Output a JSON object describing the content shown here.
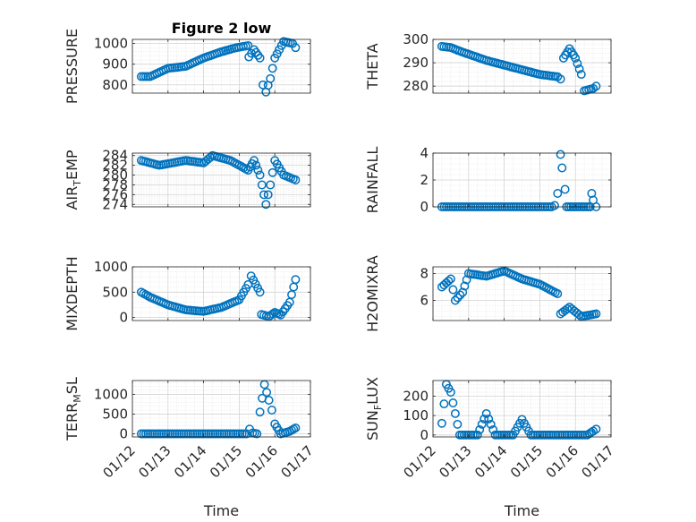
{
  "chart_data": [
    {
      "type": "scatter",
      "title": "Figure 2 low",
      "ylabel": "PRESSURE",
      "xlim": [
        "01/12",
        "01/17"
      ],
      "ylim": [
        760,
        1020
      ],
      "yticks": [
        800,
        900,
        1000
      ],
      "xticks": [
        "01/12",
        "01/13",
        "01/14",
        "01/15",
        "01/16",
        "01/17"
      ],
      "grid": true,
      "series": [
        {
          "anchors": [
            [
              "01/12 06:00",
              840
            ],
            [
              "01/12 12:00",
              840
            ],
            [
              "01/12 18:00",
              860
            ],
            [
              "01/13 00:00",
              880
            ],
            [
              "01/13 12:00",
              890
            ],
            [
              "01/14 00:00",
              930
            ],
            [
              "01/14 12:00",
              960
            ],
            [
              "01/14 22:00",
              980
            ],
            [
              "01/15 06:00",
              990
            ],
            [
              "01/15 06:30",
              935
            ],
            [
              "01/15 10:00",
              970
            ],
            [
              "01/15 14:00",
              930
            ],
            [
              "01/15 16:00",
              800
            ],
            [
              "01/15 18:00",
              765
            ],
            [
              "01/15 21:00",
              830
            ],
            [
              "01/16 00:00",
              930
            ],
            [
              "01/16 06:00",
              1010
            ],
            [
              "01/16 12:00",
              1000
            ],
            [
              "01/16 14:00",
              980
            ]
          ]
        }
      ]
    },
    {
      "type": "scatter",
      "title": "",
      "ylabel": "THETA",
      "xlim": [
        "01/12",
        "01/17"
      ],
      "ylim": [
        277,
        300
      ],
      "yticks": [
        280,
        290,
        300
      ],
      "xticks": [
        "01/12",
        "01/13",
        "01/14",
        "01/15",
        "01/16",
        "01/17"
      ],
      "grid": true,
      "series": [
        {
          "anchors": [
            [
              "01/12 06:00",
              297
            ],
            [
              "01/12 12:00",
              296.5
            ],
            [
              "01/12 18:00",
              295
            ],
            [
              "01/13 12:00",
              291
            ],
            [
              "01/14 12:00",
              287
            ],
            [
              "01/15 00:00",
              285
            ],
            [
              "01/15 12:00",
              284
            ],
            [
              "01/15 14:00",
              283
            ],
            [
              "01/15 16:00",
              292
            ],
            [
              "01/15 20:00",
              296
            ],
            [
              "01/16 00:00",
              292
            ],
            [
              "01/16 04:00",
              285
            ],
            [
              "01/16 06:00",
              278
            ],
            [
              "01/16 12:00",
              279
            ],
            [
              "01/16 14:00",
              280
            ]
          ]
        }
      ]
    },
    {
      "type": "scatter",
      "title": "",
      "ylabel": "AIR_TEMP",
      "xlim": [
        "01/12",
        "01/17"
      ],
      "ylim": [
        273.5,
        284.5
      ],
      "yticks": [
        274,
        276,
        278,
        280,
        282,
        284
      ],
      "xticks": [
        "01/12",
        "01/13",
        "01/14",
        "01/15",
        "01/16",
        "01/17"
      ],
      "grid": true,
      "series": [
        {
          "anchors": [
            [
              "01/12 06:00",
              283
            ],
            [
              "01/12 18:00",
              282
            ],
            [
              "01/13 12:00",
              283
            ],
            [
              "01/14 00:00",
              282.5
            ],
            [
              "01/14 06:00",
              284
            ],
            [
              "01/14 18:00",
              283
            ],
            [
              "01/15 00:00",
              282
            ],
            [
              "01/15 06:00",
              281
            ],
            [
              "01/15 10:00",
              283
            ],
            [
              "01/15 14:00",
              280
            ],
            [
              "01/15 18:00",
              274
            ],
            [
              "01/15 21:00",
              278
            ],
            [
              "01/16 00:00",
              283
            ],
            [
              "01/16 06:00",
              280
            ],
            [
              "01/16 14:00",
              279
            ]
          ]
        }
      ]
    },
    {
      "type": "scatter",
      "title": "",
      "ylabel": "RAINFALL",
      "xlim": [
        "01/12",
        "01/17"
      ],
      "ylim": [
        0,
        4
      ],
      "yticks": [
        0,
        2,
        4
      ],
      "xticks": [
        "01/12",
        "01/13",
        "01/14",
        "01/15",
        "01/16",
        "01/17"
      ],
      "grid": true,
      "series": [
        {
          "anchors": [
            [
              "01/12 06:00",
              0
            ],
            [
              "01/15 08:00",
              0
            ],
            [
              "01/15 10:00",
              0.1
            ],
            [
              "01/15 12:00",
              1.0
            ],
            [
              "01/15 14:00",
              3.9
            ],
            [
              "01/15 15:00",
              2.9
            ],
            [
              "01/15 17:00",
              1.3
            ],
            [
              "01/15 18:00",
              0
            ],
            [
              "01/16 10:00",
              0
            ],
            [
              "01/16 11:00",
              1.0
            ],
            [
              "01/16 12:00",
              0.5
            ],
            [
              "01/16 14:00",
              0
            ]
          ]
        }
      ]
    },
    {
      "type": "scatter",
      "title": "",
      "ylabel": "MIXDEPTH",
      "xlim": [
        "01/12",
        "01/17"
      ],
      "ylim": [
        -60,
        1000
      ],
      "yticks": [
        0,
        500,
        1000
      ],
      "xticks": [
        "01/12",
        "01/13",
        "01/14",
        "01/15",
        "01/16",
        "01/17"
      ],
      "grid": true,
      "series": [
        {
          "anchors": [
            [
              "01/12 06:00",
              500
            ],
            [
              "01/12 12:00",
              400
            ],
            [
              "01/13 00:00",
              250
            ],
            [
              "01/13 12:00",
              150
            ],
            [
              "01/14 00:00",
              120
            ],
            [
              "01/14 12:00",
              200
            ],
            [
              "01/15 00:00",
              350
            ],
            [
              "01/15 06:00",
              650
            ],
            [
              "01/15 08:00",
              820
            ],
            [
              "01/15 14:00",
              500
            ],
            [
              "01/15 15:00",
              60
            ],
            [
              "01/15 20:00",
              20
            ],
            [
              "01/16 00:00",
              100
            ],
            [
              "01/16 04:00",
              50
            ],
            [
              "01/16 10:00",
              300
            ],
            [
              "01/16 14:00",
              750
            ]
          ]
        }
      ]
    },
    {
      "type": "scatter",
      "title": "",
      "ylabel": "H2OMIXRA",
      "xlim": [
        "01/12",
        "01/17"
      ],
      "ylim": [
        4.5,
        8.5
      ],
      "yticks": [
        6,
        8
      ],
      "xticks": [
        "01/12",
        "01/13",
        "01/14",
        "01/15",
        "01/16",
        "01/17"
      ],
      "grid": true,
      "series": [
        {
          "anchors": [
            [
              "01/12 06:00",
              7
            ],
            [
              "01/12 12:00",
              7.6
            ],
            [
              "01/12 15:00",
              6.0
            ],
            [
              "01/12 20:00",
              6.6
            ],
            [
              "01/13 00:00",
              8
            ],
            [
              "01/13 12:00",
              7.8
            ],
            [
              "01/14 00:00",
              8.2
            ],
            [
              "01/14 12:00",
              7.6
            ],
            [
              "01/15 00:00",
              7.2
            ],
            [
              "01/15 12:00",
              6.5
            ],
            [
              "01/15 14:00",
              5.0
            ],
            [
              "01/15 20:00",
              5.5
            ],
            [
              "01/16 04:00",
              4.8
            ],
            [
              "01/16 14:00",
              5.0
            ]
          ]
        }
      ]
    },
    {
      "type": "scatter",
      "title": "",
      "ylabel": "TERR_MSL",
      "xlabel": "Time",
      "xlim": [
        "01/12",
        "01/17"
      ],
      "ylim": [
        -80,
        1350
      ],
      "yticks": [
        0,
        500,
        1000
      ],
      "xticks": [
        "01/12",
        "01/13",
        "01/14",
        "01/15",
        "01/16",
        "01/17"
      ],
      "grid": true,
      "series": [
        {
          "anchors": [
            [
              "01/12 06:00",
              0
            ],
            [
              "01/15 05:00",
              0
            ],
            [
              "01/15 07:00",
              120
            ],
            [
              "01/15 09:00",
              20
            ],
            [
              "01/15 12:00",
              0
            ],
            [
              "01/15 14:00",
              550
            ],
            [
              "01/15 17:00",
              1250
            ],
            [
              "01/15 20:00",
              850
            ],
            [
              "01/15 22:00",
              600
            ],
            [
              "01/16 00:00",
              250
            ],
            [
              "01/16 04:00",
              0
            ],
            [
              "01/16 10:00",
              60
            ],
            [
              "01/16 14:00",
              150
            ]
          ]
        }
      ]
    },
    {
      "type": "scatter",
      "title": "",
      "ylabel": "SUN_FLUX",
      "xlabel": "Time",
      "xlim": [
        "01/12",
        "01/17"
      ],
      "ylim": [
        -10,
        280
      ],
      "yticks": [
        0,
        100,
        200
      ],
      "xticks": [
        "01/12",
        "01/13",
        "01/14",
        "01/15",
        "01/16",
        "01/17"
      ],
      "grid": true,
      "series": [
        {
          "anchors": [
            [
              "01/12 06:00",
              60
            ],
            [
              "01/12 09:00",
              260
            ],
            [
              "01/12 12:00",
              220
            ],
            [
              "01/12 18:00",
              0
            ],
            [
              "01/13 06:00",
              0
            ],
            [
              "01/13 12:00",
              110
            ],
            [
              "01/13 18:00",
              0
            ],
            [
              "01/14 06:00",
              0
            ],
            [
              "01/14 12:00",
              80
            ],
            [
              "01/14 18:00",
              0
            ],
            [
              "01/16 08:00",
              0
            ],
            [
              "01/16 12:00",
              20
            ],
            [
              "01/16 14:00",
              30
            ]
          ]
        }
      ]
    }
  ]
}
